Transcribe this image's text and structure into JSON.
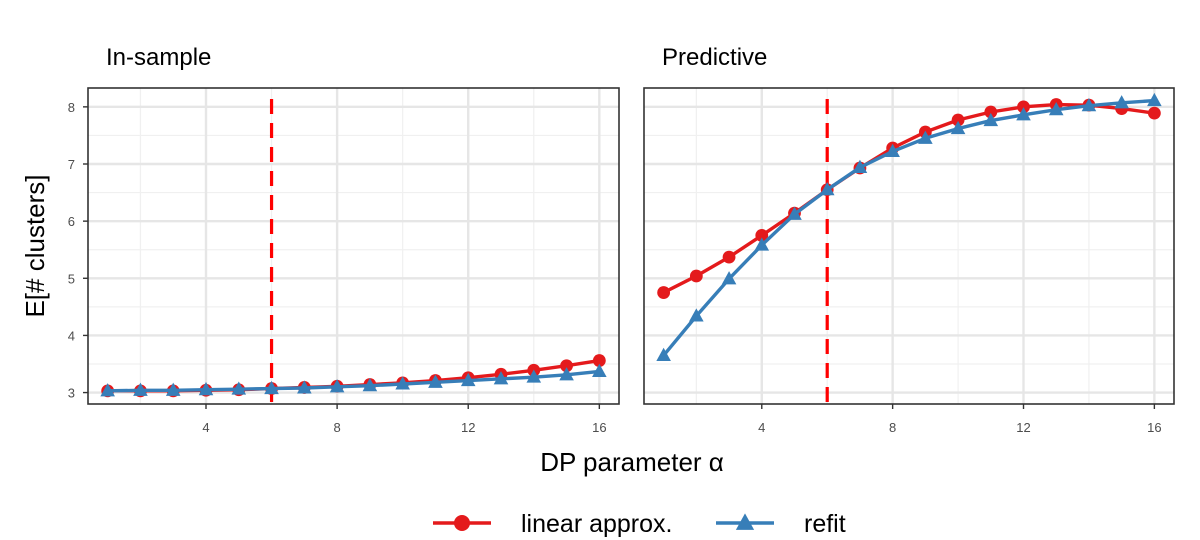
{
  "chart_data": {
    "type": "line",
    "xlabel": "DP parameter α",
    "ylabel": "E[# clusters]",
    "xlim": [
      0.4,
      16.6
    ],
    "ylim": [
      2.8,
      8.33
    ],
    "x_ticks": [
      4,
      8,
      12,
      16
    ],
    "y_ticks": [
      3,
      4,
      5,
      6,
      7,
      8
    ],
    "grid": true,
    "legend_position": "bottom",
    "vline": {
      "x": 6,
      "color": "#ff0000",
      "style": "dashed"
    },
    "series_styles": [
      {
        "name": "linear approx.",
        "color": "#e41a1c",
        "marker": "circle"
      },
      {
        "name": "refit",
        "color": "#377eb8",
        "marker": "triangle"
      }
    ],
    "panels": [
      {
        "title": "In-sample",
        "x": [
          1,
          2,
          3,
          4,
          5,
          6,
          7,
          8,
          9,
          10,
          11,
          12,
          13,
          14,
          15,
          16
        ],
        "series": [
          {
            "name": "linear approx.",
            "values": [
              3.03,
              3.03,
              3.03,
              3.04,
              3.05,
              3.07,
              3.09,
              3.11,
              3.14,
              3.17,
              3.21,
              3.26,
              3.32,
              3.39,
              3.47,
              3.56
            ]
          },
          {
            "name": "refit",
            "values": [
              3.03,
              3.04,
              3.04,
              3.05,
              3.06,
              3.07,
              3.08,
              3.1,
              3.12,
              3.15,
              3.18,
              3.21,
              3.24,
              3.27,
              3.31,
              3.37
            ]
          }
        ]
      },
      {
        "title": "Predictive",
        "x": [
          1,
          2,
          3,
          4,
          5,
          6,
          7,
          8,
          9,
          10,
          11,
          12,
          13,
          14,
          15,
          16
        ],
        "series": [
          {
            "name": "linear approx.",
            "values": [
              4.75,
              5.04,
              5.37,
              5.75,
              6.14,
              6.55,
              6.93,
              7.28,
              7.56,
              7.77,
              7.91,
              8.0,
              8.04,
              8.03,
              7.97,
              7.89
            ]
          },
          {
            "name": "refit",
            "values": [
              3.65,
              4.34,
              4.99,
              5.58,
              6.12,
              6.55,
              6.94,
              7.22,
              7.45,
              7.62,
              7.76,
              7.86,
              7.95,
              8.02,
              8.07,
              8.11
            ]
          }
        ]
      }
    ]
  }
}
